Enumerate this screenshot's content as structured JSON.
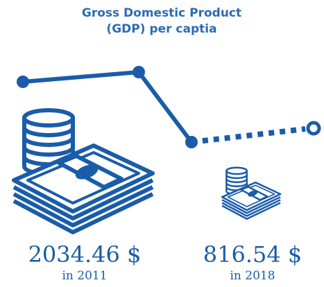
{
  "title_lines": [
    "Gross Domestic Product",
    "(GDP) per captia"
  ],
  "items": [
    {
      "value": "2034.46 $",
      "label": "in 2011"
    },
    {
      "value": "816.54 $",
      "label": "in 2018"
    }
  ]
}
